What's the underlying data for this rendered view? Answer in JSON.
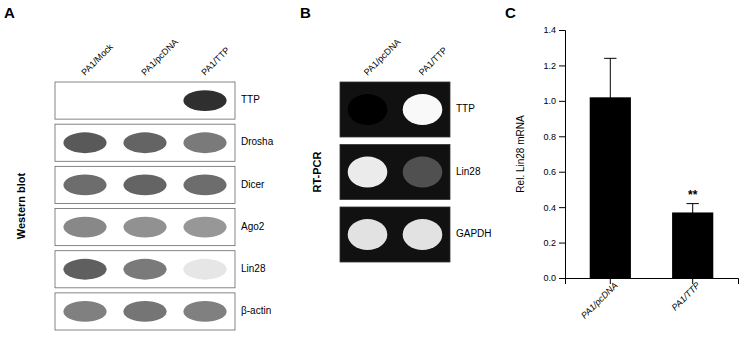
{
  "chart_data": [
    {
      "type": "blot",
      "title": "A",
      "ylabel": "Western blot",
      "categories": [
        "PA1/Mock",
        "PA1/pcDNA",
        "PA1/TTP"
      ],
      "rows": [
        "TTP",
        "Drosha",
        "Dicer",
        "Ago2",
        "Lin28",
        "β-actin"
      ],
      "cells": [
        [
          0.0,
          0.0,
          0.85
        ],
        [
          0.72,
          0.68,
          0.6
        ],
        [
          0.65,
          0.68,
          0.65
        ],
        [
          0.55,
          0.52,
          0.5
        ],
        [
          0.7,
          0.6,
          0.18
        ],
        [
          0.58,
          0.62,
          0.58
        ]
      ]
    },
    {
      "type": "gel",
      "title": "B",
      "ylabel": "RT-PCR",
      "categories": [
        "PA1/pcDNA",
        "PA1/TTP"
      ],
      "rows": [
        "TTP",
        "Lin28",
        "GAPDH"
      ],
      "cells": [
        [
          0.0,
          0.95
        ],
        [
          0.85,
          0.25
        ],
        [
          0.8,
          0.8
        ]
      ]
    },
    {
      "type": "bar",
      "title": "C",
      "ylabel": "Rel. Lin28 mRNA",
      "categories": [
        "PA1/pcDNA",
        "PA1/TTP"
      ],
      "values": [
        1.02,
        0.37
      ],
      "errors": [
        0.22,
        0.05
      ],
      "color": "#000000",
      "ylim": [
        0,
        1.4
      ],
      "yticks": [
        {
          "value": 0.0,
          "label": "0.0"
        },
        0.2,
        0.4,
        0.6,
        0.8,
        {
          "value": 1.0,
          "label": "1.0"
        },
        1.2,
        1.4
      ],
      "annotations": [
        {
          "text": "**",
          "category": "PA1/TTP"
        }
      ]
    }
  ]
}
